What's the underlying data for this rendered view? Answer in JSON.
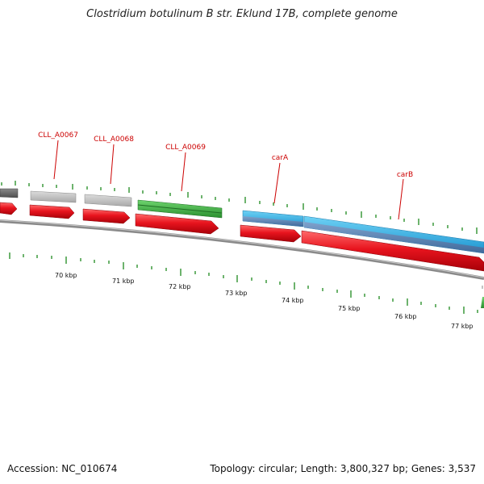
{
  "title": "Clostridium botulinum B str. Eklund 17B, complete genome",
  "footer": {
    "accession": "Accession: NC_010674",
    "stats": "Topology: circular; Length: 3,800,327 bp; Genes: 3,537"
  },
  "colors": {
    "cds_red": "#e8141e",
    "gene_gray": "#bdbdbd",
    "gene_dark_gray": "#6b6b6b",
    "gene_green": "#3cb043",
    "gene_blue": "#29aee6",
    "gene_slate": "#5b86b8",
    "label_red": "#cc0000",
    "tick_green": "#1e8a1e",
    "backbone": "#8a8a8a"
  },
  "genes": [
    {
      "label": "CLL_A0067",
      "color": "gray"
    },
    {
      "label": "CLL_A0068",
      "color": "gray"
    },
    {
      "label": "CLL_A0069",
      "color": "green"
    },
    {
      "label": "carA",
      "color": "blue"
    },
    {
      "label": "carB",
      "color": "blue"
    }
  ],
  "axis": {
    "unit": "kbp",
    "ticks": [
      "70 kbp",
      "71 kbp",
      "72 kbp",
      "73 kbp",
      "74 kbp",
      "75 kbp",
      "76 kbp",
      "77 kbp"
    ]
  }
}
